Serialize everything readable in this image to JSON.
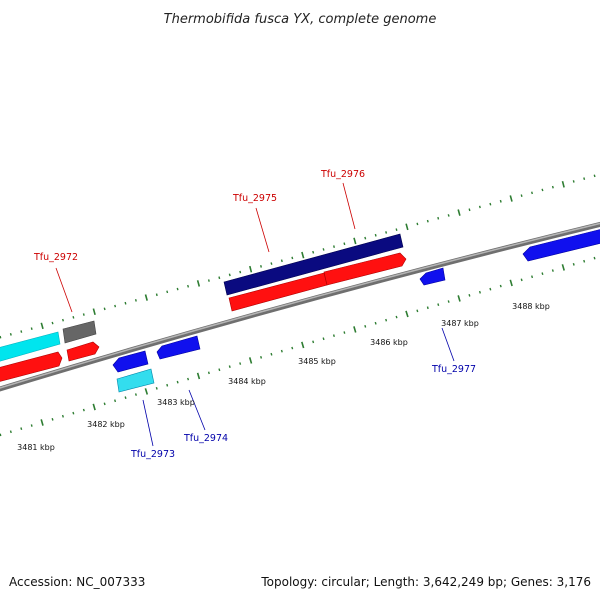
{
  "title": "Thermobifida fusca YX, complete genome",
  "footer": {
    "accession": "Accession: NC_007333",
    "stats": "Topology: circular; Length: 3,642,249 bp; Genes: 3,176"
  },
  "colors": {
    "forward_label": "#cc0000",
    "reverse_label": "#0000aa",
    "backbone": "#8a8a8a",
    "tick": "#2e7d32"
  },
  "ticks": [
    "3481 kbp",
    "3482 kbp",
    "3483 kbp",
    "3484 kbp",
    "3485 kbp",
    "3486 kbp",
    "3487 kbp",
    "3488 kbp"
  ],
  "gene_labels": {
    "Tfu_2972": "Tfu_2972",
    "Tfu_2975": "Tfu_2975",
    "Tfu_2976": "Tfu_2976",
    "Tfu_2973": "Tfu_2973",
    "Tfu_2974": "Tfu_2974",
    "Tfu_2977": "Tfu_2977"
  }
}
